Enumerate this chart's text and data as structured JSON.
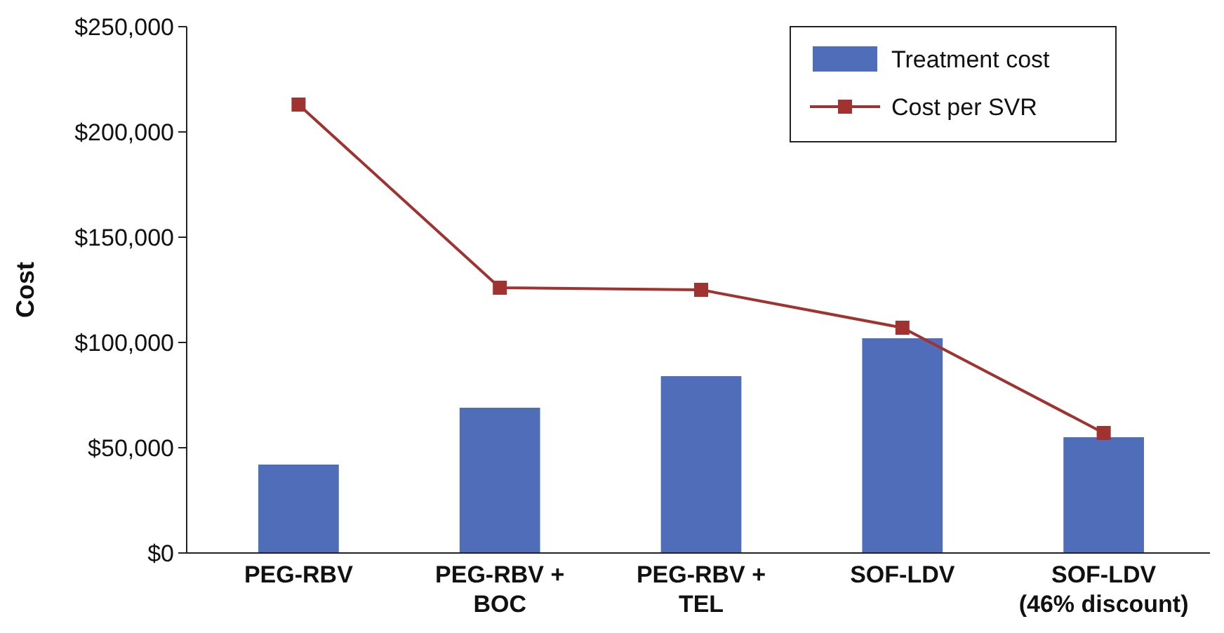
{
  "chart_data": {
    "type": "bar",
    "ylabel": "Cost",
    "categories": [
      "PEG-RBV",
      "PEG-RBV +\nBOC",
      "PEG-RBV +\nTEL",
      "SOF-LDV",
      "SOF-LDV\n(46% discount)"
    ],
    "series": [
      {
        "name": "Treatment cost",
        "color": "#4f6db8",
        "values": [
          42000,
          69000,
          84000,
          102000,
          55000
        ]
      },
      {
        "name": "Cost per SVR",
        "type": "line",
        "color": "#a0322f",
        "marker": "square",
        "values": [
          213000,
          126000,
          125000,
          107000,
          57000
        ]
      }
    ],
    "ylim": [
      0,
      250000
    ],
    "yticks": [
      {
        "value": 0,
        "label": "$0"
      },
      {
        "value": 50000,
        "label": "$50,000"
      },
      {
        "value": 100000,
        "label": "$100,000"
      },
      {
        "value": 150000,
        "label": "$150,000"
      },
      {
        "value": 200000,
        "label": "$200,000"
      },
      {
        "value": 250000,
        "label": "$250,000"
      }
    ],
    "grid": false,
    "legend": "top right"
  }
}
